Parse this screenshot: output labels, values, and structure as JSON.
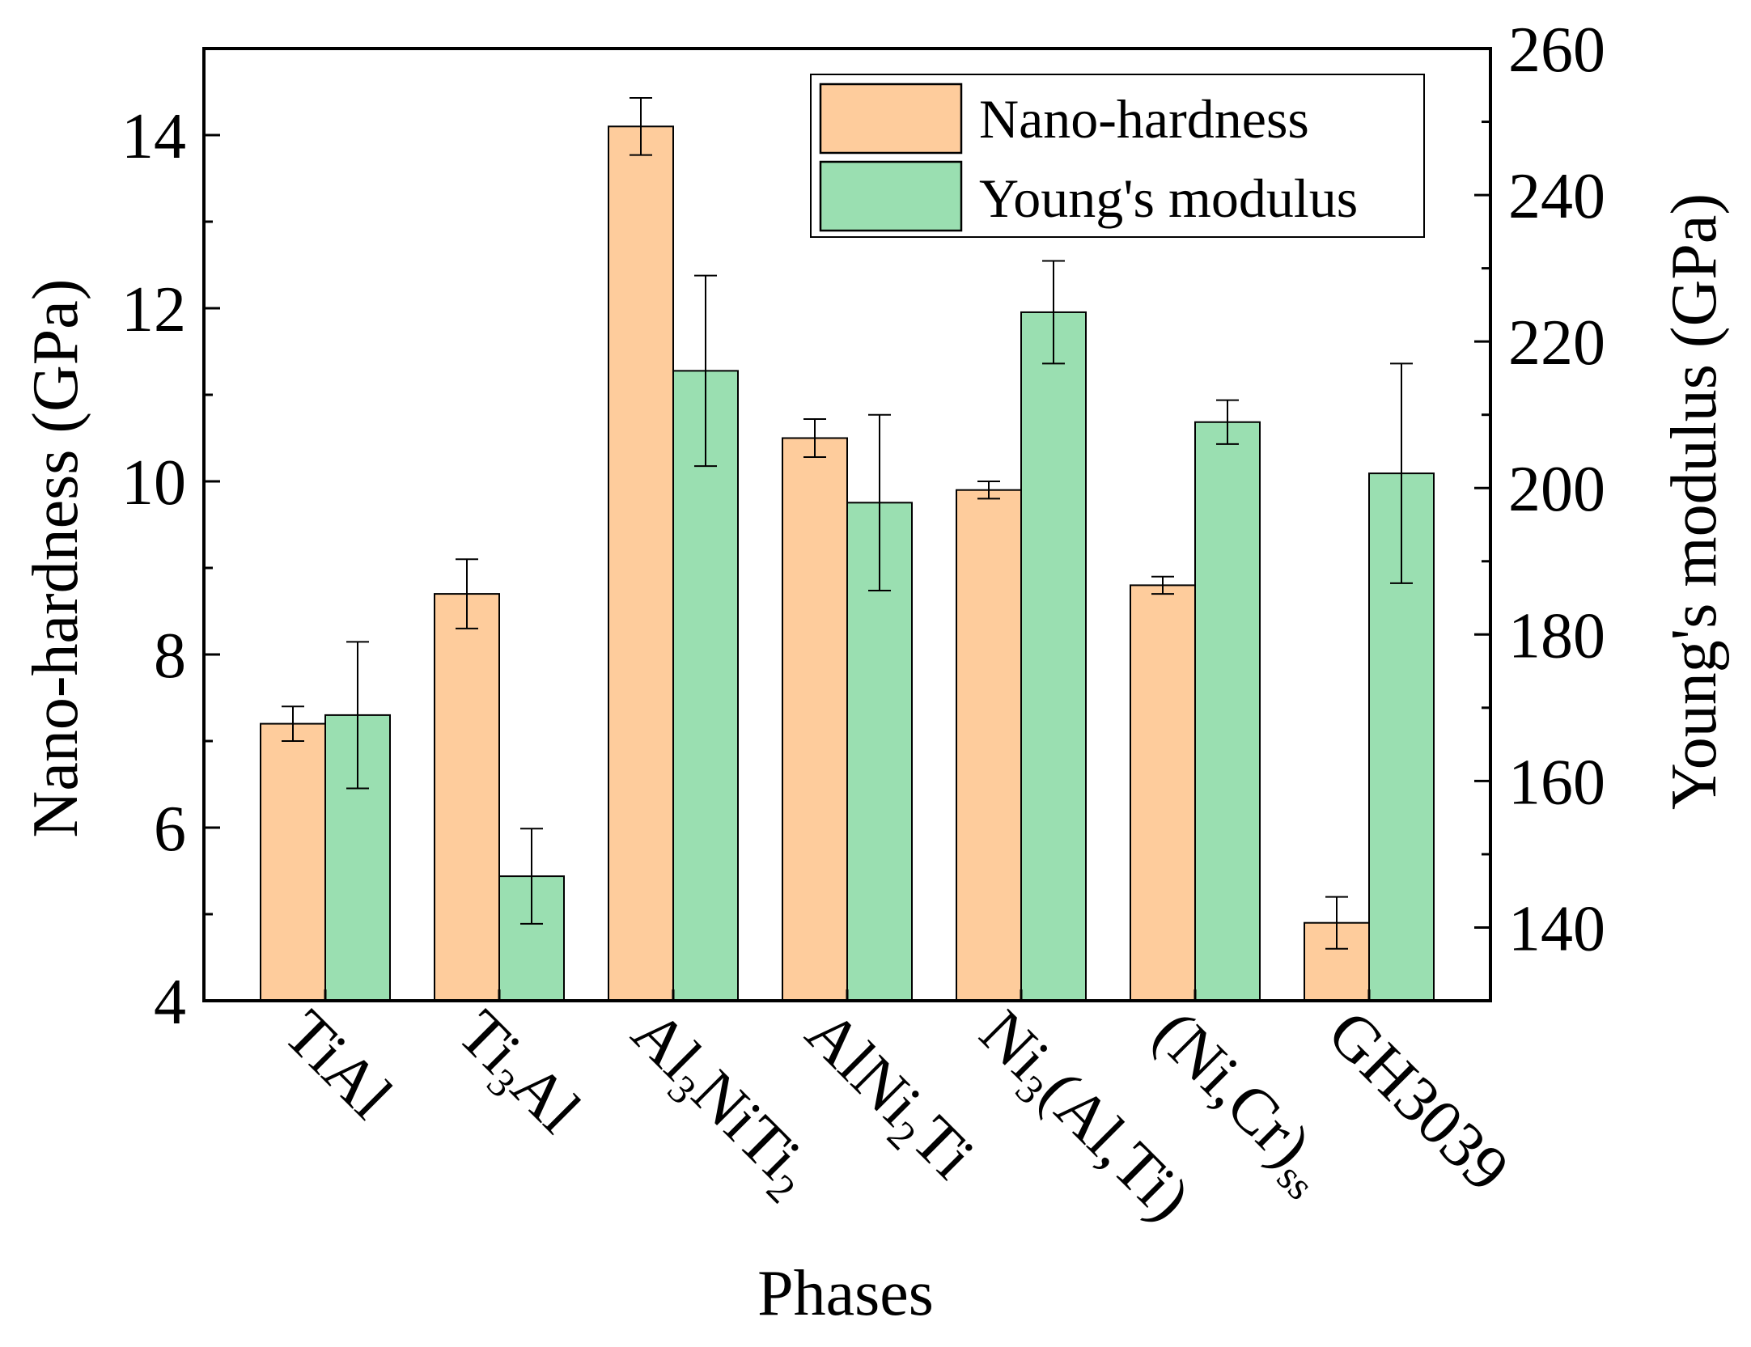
{
  "chart_data": {
    "type": "bar",
    "title": "",
    "xlabel": "Phases",
    "ylabel_left": "Nano-hardness (GPa)",
    "ylabel_right": "Young's modulus (GPa)",
    "categories": [
      {
        "base": "TiAl",
        "parts": [
          [
            "TiAl",
            false
          ]
        ]
      },
      {
        "base": "Ti3Al",
        "parts": [
          [
            "Ti",
            false
          ],
          [
            "3",
            true
          ],
          [
            "Al",
            false
          ]
        ]
      },
      {
        "base": "Al3NiTi2",
        "parts": [
          [
            "Al",
            false
          ],
          [
            "3",
            true
          ],
          [
            "NiTi",
            false
          ],
          [
            "2",
            true
          ]
        ]
      },
      {
        "base": "AlNi2Ti",
        "parts": [
          [
            "AlNi",
            false
          ],
          [
            "2",
            true
          ],
          [
            "Ti",
            false
          ]
        ]
      },
      {
        "base": "Ni3(Al,Ti)",
        "parts": [
          [
            "Ni",
            false
          ],
          [
            "3",
            true
          ],
          [
            "(Al,Ti)",
            false
          ]
        ]
      },
      {
        "base": "(Ni,Cr)ss",
        "parts": [
          [
            "(Ni,Cr)",
            false
          ],
          [
            "ss",
            true
          ]
        ]
      },
      {
        "base": "GH3039",
        "parts": [
          [
            "GH3039",
            false
          ]
        ]
      }
    ],
    "ylim_left": [
      4,
      15
    ],
    "yticks_left": [
      4,
      6,
      8,
      10,
      12,
      14
    ],
    "ylim_right": [
      130,
      260
    ],
    "yticks_right": [
      140,
      160,
      180,
      200,
      220,
      240,
      260
    ],
    "series": [
      {
        "name": "Nano-hardness",
        "axis": "left",
        "color": "#FECC9C",
        "values": [
          7.2,
          8.7,
          14.1,
          10.5,
          9.9,
          8.8,
          4.9
        ],
        "errors": [
          0.2,
          0.4,
          0.33,
          0.22,
          0.1,
          0.1,
          0.3
        ]
      },
      {
        "name": "Young's modulus",
        "axis": "right",
        "color": "#9ADFB1",
        "values": [
          169,
          147,
          216,
          198,
          224,
          209,
          202
        ],
        "errors": [
          10,
          6.5,
          13,
          12,
          7,
          3,
          15
        ]
      }
    ],
    "legend": {
      "position": "top-right",
      "entries": [
        "Nano-hardness",
        "Young's modulus"
      ]
    }
  }
}
